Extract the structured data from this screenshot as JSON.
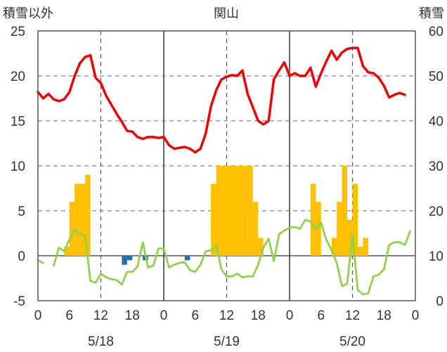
{
  "chart_data": {
    "type": "bar+line",
    "title": "関山",
    "left_axis_label": "積雪以外",
    "right_axis_label": "積雪",
    "left_ylim": [
      -5,
      25
    ],
    "left_yticks": [
      -5,
      0,
      5,
      10,
      15,
      20,
      25
    ],
    "right_ylim": [
      0,
      60
    ],
    "right_yticks": [
      0,
      10,
      20,
      30,
      40,
      50,
      60
    ],
    "x_range_hours": [
      0,
      72
    ],
    "x_ticks": [
      {
        "h": 0,
        "label": "0"
      },
      {
        "h": 6,
        "label": "6"
      },
      {
        "h": 12,
        "label": "12"
      },
      {
        "h": 18,
        "label": "18"
      },
      {
        "h": 24,
        "label": "0"
      },
      {
        "h": 30,
        "label": "6"
      },
      {
        "h": 36,
        "label": "12"
      },
      {
        "h": 42,
        "label": "18"
      },
      {
        "h": 48,
        "label": "0"
      },
      {
        "h": 54,
        "label": "6"
      },
      {
        "h": 60,
        "label": "12"
      },
      {
        "h": 66,
        "label": "18"
      },
      {
        "h": 72,
        "label": "0"
      }
    ],
    "date_labels": [
      {
        "h": 12,
        "label": "5/18"
      },
      {
        "h": 36,
        "label": "5/19"
      },
      {
        "h": 60,
        "label": "5/20"
      }
    ],
    "day_lines_hours": [
      24,
      48
    ],
    "noon_lines_hours": [
      12,
      36,
      60
    ],
    "grid_y_values": [
      5,
      10,
      15,
      20
    ],
    "colors": {
      "red_line": "#ee0000",
      "green_line": "#92d050",
      "orange_bars": "#ffc000",
      "blue_bars": "#1f6eb5"
    },
    "series": [
      {
        "kind": "line",
        "color_key": "red_line",
        "values": [
          18.2,
          17.5,
          18.0,
          17.4,
          17.2,
          17.4,
          18.2,
          20.0,
          21.4,
          22.1,
          22.3,
          19.8,
          19.2,
          17.8,
          16.8,
          15.8,
          14.9,
          13.9,
          13.8,
          13.2,
          13.0,
          13.2,
          13.2,
          13.1,
          13.2,
          12.3,
          11.9,
          12.0,
          12.1,
          11.9,
          11.5,
          11.9,
          13.6,
          16.6,
          18.4,
          19.6,
          19.9,
          20.1,
          20.0,
          20.6,
          18.0,
          16.5,
          15.0,
          14.6,
          15.0,
          19.6,
          20.6,
          21.5,
          20.0,
          20.3,
          20.0,
          20.0,
          20.9,
          18.8,
          20.3,
          21.6,
          22.8,
          21.8,
          22.6,
          23.0,
          23.1,
          23.1,
          21.1,
          20.4,
          20.3,
          19.8,
          18.9,
          17.6,
          17.9,
          18.1,
          17.9
        ]
      },
      {
        "kind": "line",
        "color_key": "green_line",
        "values": [
          -0.5,
          -0.8,
          null,
          -1.1,
          0.9,
          0.5,
          1.8,
          2.9,
          2.3,
          2.3,
          -2.8,
          -3.0,
          -2.0,
          -2.4,
          -2.6,
          -2.7,
          -3.2,
          -1.8,
          -1.8,
          -1.2,
          1.5,
          -1.3,
          -1.1,
          0.8,
          0.8,
          -1.3,
          -1.0,
          -0.8,
          -0.7,
          -1.6,
          -1.8,
          -1.0,
          0.5,
          0.6,
          1.2,
          -1.5,
          -2.3,
          -2.3,
          -2.0,
          -2.4,
          -2.3,
          -2.3,
          -1.0,
          0.9,
          1.9,
          -0.6,
          2.4,
          2.8,
          3.1,
          3.2,
          3.0,
          4.0,
          3.8,
          3.0,
          3.7,
          1.8,
          0.6,
          -0.8,
          -3.4,
          -3.1,
          2.4,
          -3.8,
          -4.3,
          -4.2,
          -2.3,
          -2.1,
          -1.5,
          1.2,
          1.5,
          1.5,
          1.2,
          2.7
        ]
      },
      {
        "kind": "bar",
        "color_key": "orange_bars",
        "bars": [
          {
            "h": 6,
            "v": 1
          },
          {
            "h": 7,
            "v": 6
          },
          {
            "h": 8,
            "v": 8
          },
          {
            "h": 9,
            "v": 8
          },
          {
            "h": 10,
            "v": 9
          },
          {
            "h": 34,
            "v": 8
          },
          {
            "h": 35,
            "v": 10
          },
          {
            "h": 36,
            "v": 10
          },
          {
            "h": 37,
            "v": 10
          },
          {
            "h": 38,
            "v": 10
          },
          {
            "h": 39,
            "v": 10
          },
          {
            "h": 40,
            "v": 10
          },
          {
            "h": 41,
            "v": 10
          },
          {
            "h": 42,
            "v": 6
          },
          {
            "h": 43,
            "v": 2
          },
          {
            "h": 53,
            "v": 8
          },
          {
            "h": 54,
            "v": 6
          },
          {
            "h": 57,
            "v": 2
          },
          {
            "h": 58,
            "v": 6
          },
          {
            "h": 59,
            "v": 10
          },
          {
            "h": 60,
            "v": 4
          },
          {
            "h": 61,
            "v": 8
          },
          {
            "h": 62,
            "v": 1
          },
          {
            "h": 63,
            "v": 2
          }
        ]
      },
      {
        "kind": "bar",
        "color_key": "blue_bars",
        "bars": [
          {
            "h": 17,
            "v": -1.0
          },
          {
            "h": 18,
            "v": -0.5
          },
          {
            "h": 21,
            "v": -0.5
          },
          {
            "h": 29,
            "v": -0.5
          }
        ]
      }
    ]
  }
}
